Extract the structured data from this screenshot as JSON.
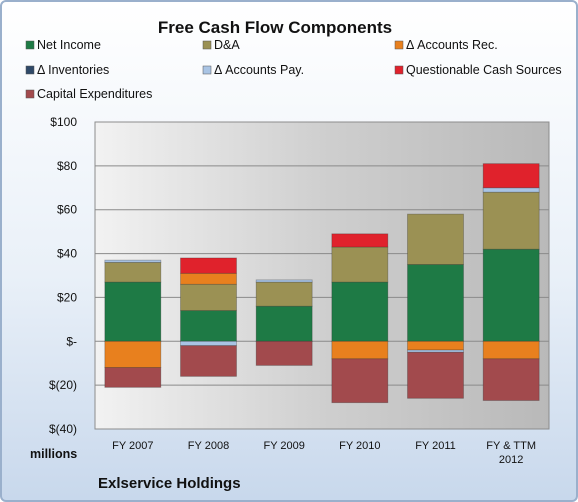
{
  "chart_data": {
    "type": "bar",
    "stacked": true,
    "title": "Free Cash Flow Components",
    "categories": [
      "FY 2007",
      "FY 2008",
      "FY 2009",
      "FY 2010",
      "FY 2011",
      "FY & TTM 2012"
    ],
    "units_label": "millions",
    "company": "Exlservice Holdings",
    "ylim": [
      -40,
      100
    ],
    "yticks": [
      -40,
      -20,
      0,
      20,
      40,
      60,
      80,
      100
    ],
    "ytick_labels": [
      "$(40)",
      "$(20)",
      "$-",
      "$20",
      "$40",
      "$60",
      "$80",
      "$100"
    ],
    "grid": true,
    "legend_position": "top",
    "series": [
      {
        "name": "Net Income",
        "color": "#1e7a45",
        "values": [
          27,
          14,
          16,
          27,
          35,
          42
        ]
      },
      {
        "name": "D&A",
        "color": "#9b9154",
        "values": [
          9,
          12,
          11,
          16,
          23,
          26
        ]
      },
      {
        "name": "Δ Accounts Rec.",
        "color": "#e8801e",
        "values": [
          -12,
          5,
          0,
          -8,
          -4,
          -8
        ]
      },
      {
        "name": "Δ Inventories",
        "color": "#2f4968",
        "values": [
          0,
          0,
          0,
          0,
          0,
          0
        ]
      },
      {
        "name": "Δ Accounts Pay.",
        "color": "#a9c4e4",
        "values": [
          1,
          -2,
          1,
          0,
          -1,
          2
        ]
      },
      {
        "name": "Questionable Cash Sources",
        "color": "#e0222c",
        "values": [
          0,
          7,
          0,
          6,
          0,
          11
        ]
      },
      {
        "name": "Capital Expenditures",
        "color": "#a24a4d",
        "values": [
          -9,
          -14,
          -11,
          -20,
          -21,
          -19
        ]
      }
    ]
  }
}
